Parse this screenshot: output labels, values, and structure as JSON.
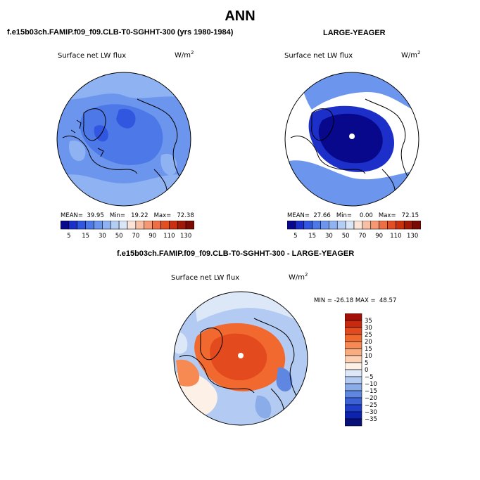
{
  "main_title": "ANN",
  "panel1": {
    "case": "f.e15b03ch.FAMIP.f09_f09.CLB-T0-SGHHT-300 (yrs 1980-1984)",
    "variable": "Surface net LW flux",
    "units": "W/m",
    "units_exp": "2",
    "stats": "MEAN=  39.95   Min=   19.22   Max=   72.38"
  },
  "panel2": {
    "case": "LARGE-YEAGER",
    "variable": "Surface net LW flux",
    "units": "W/m",
    "units_exp": "2",
    "stats": "MEAN=  27.66   Min=    0.00   Max=   72.15"
  },
  "panel3": {
    "case": "f.e15b03ch.FAMIP.f09_f09.CLB-T0-SGHHT-300 - LARGE-YEAGER",
    "variable": "Surface net LW flux",
    "units": "W/m",
    "units_exp": "2",
    "stats": "MIN = -26.18 MAX =  48.57"
  },
  "colorbar_abs": {
    "labels": [
      "5",
      "15",
      "30",
      "50",
      "70",
      "90",
      "110",
      "130"
    ],
    "colors": [
      "#08088c",
      "#1c2fc9",
      "#3156e0",
      "#4d79e8",
      "#6c96ed",
      "#8fb2f2",
      "#b4cdf5",
      "#d9e6f8",
      "#fbe3d7",
      "#f7bfa4",
      "#f59873",
      "#ef6f45",
      "#e34e22",
      "#c9300e",
      "#a01806",
      "#7a0a04"
    ]
  },
  "colorbar_diff": {
    "labels": [
      "35",
      "30",
      "25",
      "20",
      "15",
      "10",
      "5",
      "0",
      "−5",
      "−10",
      "−15",
      "−20",
      "−25",
      "−30",
      "−35"
    ],
    "colors": [
      "#a50f05",
      "#c92a0d",
      "#e34a1e",
      "#f2692f",
      "#f68a52",
      "#f9ac80",
      "#fcd0b2",
      "#fdf0e6",
      "#dce8f8",
      "#b3cbf2",
      "#8aace9",
      "#5f86e0",
      "#3b62d6",
      "#1f3fcb",
      "#0e22b0",
      "#08107a"
    ]
  }
}
